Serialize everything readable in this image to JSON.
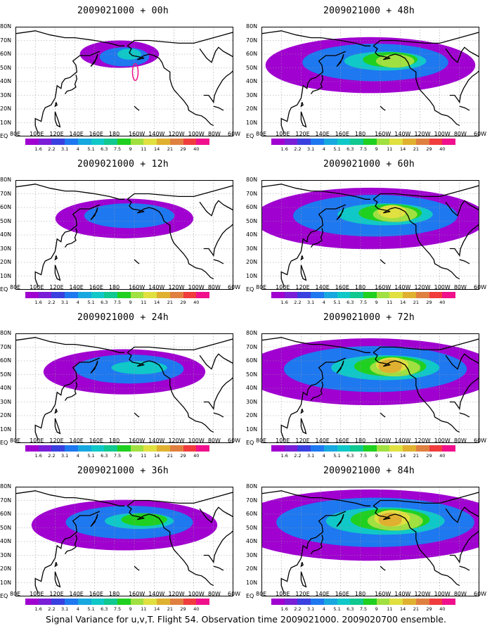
{
  "panels": [
    {
      "title": "2009021000 + 00h",
      "level": 0
    },
    {
      "title": "2009021000 + 48h",
      "level": 4
    },
    {
      "title": "2009021000 + 12h",
      "level": 1
    },
    {
      "title": "2009021000 + 60h",
      "level": 5
    },
    {
      "title": "2009021000 + 24h",
      "level": 2
    },
    {
      "title": "2009021000 + 72h",
      "level": 6
    },
    {
      "title": "2009021000 + 36h",
      "level": 3
    },
    {
      "title": "2009021000 + 84h",
      "level": 7
    }
  ],
  "lat_labels": [
    "80N",
    "70N",
    "60N",
    "50N",
    "40N",
    "30N",
    "20N",
    "10N",
    "EQ"
  ],
  "lon_labels": [
    "80E",
    "100E",
    "120E",
    "140E",
    "160E",
    "180",
    "160W",
    "140W",
    "120W",
    "100W",
    "80W",
    "60W"
  ],
  "colorbar": {
    "labels": [
      "1.6",
      "2.2",
      "3.1",
      "4",
      "5.1",
      "6.3",
      "7.5",
      "9",
      "11",
      "14",
      "21",
      "29",
      "40"
    ],
    "colors": [
      "#a000d0",
      "#7a1ed8",
      "#3a40e0",
      "#1e78f0",
      "#18a8e0",
      "#10c8c8",
      "#10c890",
      "#20d020",
      "#a0e040",
      "#e0e040",
      "#e0b030",
      "#e08040",
      "#f03c3c",
      "#f0108c"
    ]
  },
  "caption": "Signal Variance for u,v,T. Flight 54. Observation time 2009021000. 2009020700 ensemble."
}
